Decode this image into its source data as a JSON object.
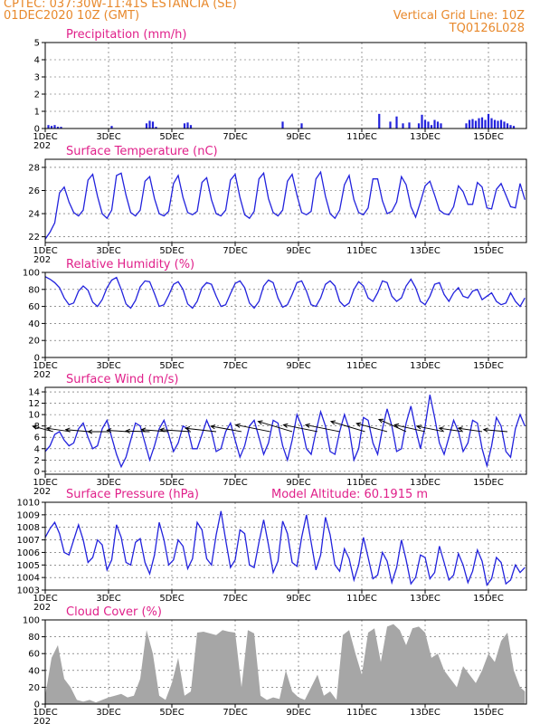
{
  "header": {
    "line1_left": "CPTEC:   037:30W-11:41S   ESTANCIA (SE)",
    "line2_left": "01DEC2020 10Z (GMT)",
    "line1_right": "Vertical Grid Line: 10Z",
    "line2_right": "TQ0126L028"
  },
  "colors": {
    "header": "#e8892c",
    "title": "#e0208a",
    "series": "#2222dd",
    "cloud": "#a6a6a6",
    "arrow": "#000000"
  },
  "x_axis": {
    "ticks": [
      "1DEC",
      "3DEC",
      "5DEC",
      "7DEC",
      "9DEC",
      "11DEC",
      "13DEC",
      "15DEC"
    ],
    "tick_days": [
      1,
      3,
      5,
      7,
      9,
      11,
      13,
      15
    ],
    "range_days": [
      1,
      16.2
    ],
    "year_fragment": "202"
  },
  "chart_data": [
    {
      "id": "precip",
      "type": "bar",
      "title": "Precipitation (mm/h)",
      "ylim": [
        0,
        5
      ],
      "yticks": [
        0,
        1,
        2,
        3,
        4,
        5
      ],
      "x_days": [
        1.1,
        1.2,
        1.3,
        1.4,
        1.5,
        3.1,
        4.2,
        4.3,
        4.4,
        4.5,
        5.4,
        5.5,
        5.6,
        8.5,
        9.1,
        11.55,
        11.9,
        12.1,
        12.3,
        12.5,
        12.8,
        12.9,
        13.0,
        13.1,
        13.2,
        13.3,
        13.4,
        13.5,
        14.3,
        14.4,
        14.5,
        14.6,
        14.7,
        14.8,
        14.9,
        15.0,
        15.1,
        15.2,
        15.3,
        15.4,
        15.5,
        15.6,
        15.7,
        15.8
      ],
      "values": [
        0.2,
        0.15,
        0.2,
        0.1,
        0.1,
        0.15,
        0.3,
        0.45,
        0.4,
        0.1,
        0.3,
        0.35,
        0.2,
        0.4,
        0.3,
        0.85,
        0.4,
        0.7,
        0.3,
        0.35,
        0.3,
        0.8,
        0.5,
        0.4,
        0.2,
        0.5,
        0.4,
        0.3,
        0.3,
        0.5,
        0.55,
        0.45,
        0.6,
        0.65,
        0.5,
        0.85,
        0.6,
        0.5,
        0.45,
        0.5,
        0.4,
        0.3,
        0.2,
        0.15
      ]
    },
    {
      "id": "temp",
      "type": "line",
      "title": "Surface Temperature (nC)",
      "ylim": [
        21.5,
        28.7
      ],
      "yticks": [
        22,
        24,
        26,
        28
      ],
      "x_days": [
        1.0,
        1.15,
        1.3,
        1.45,
        1.6,
        1.75,
        1.9,
        2.05,
        2.2,
        2.35,
        2.5,
        2.65,
        2.8,
        2.95,
        3.1,
        3.25,
        3.4,
        3.55,
        3.7,
        3.85,
        4.0,
        4.15,
        4.3,
        4.45,
        4.6,
        4.75,
        4.9,
        5.05,
        5.2,
        5.35,
        5.5,
        5.65,
        5.8,
        5.95,
        6.1,
        6.25,
        6.4,
        6.55,
        6.7,
        6.85,
        7.0,
        7.15,
        7.3,
        7.45,
        7.6,
        7.75,
        7.9,
        8.05,
        8.2,
        8.35,
        8.5,
        8.65,
        8.8,
        8.95,
        9.1,
        9.25,
        9.4,
        9.55,
        9.7,
        9.85,
        10.0,
        10.15,
        10.3,
        10.45,
        10.6,
        10.75,
        10.9,
        11.05,
        11.2,
        11.35,
        11.5,
        11.65,
        11.8,
        11.95,
        12.1,
        12.25,
        12.4,
        12.55,
        12.7,
        12.85,
        13.0,
        13.15,
        13.3,
        13.45,
        13.6,
        13.75,
        13.9,
        14.05,
        14.2,
        14.35,
        14.5,
        14.65,
        14.8,
        14.95,
        15.1,
        15.25,
        15.4,
        15.55,
        15.7,
        15.85,
        16.0,
        16.15
      ],
      "values": [
        21.8,
        22.4,
        23.2,
        25.8,
        26.3,
        25.0,
        24.1,
        23.8,
        24.3,
        26.9,
        27.4,
        25.5,
        24.0,
        23.6,
        24.3,
        27.3,
        27.5,
        25.6,
        24.1,
        23.8,
        24.3,
        26.8,
        27.2,
        25.3,
        24.0,
        23.8,
        24.2,
        26.6,
        27.3,
        25.4,
        24.1,
        23.9,
        24.2,
        26.7,
        27.1,
        25.2,
        24.0,
        23.8,
        24.3,
        26.9,
        27.4,
        25.4,
        23.9,
        23.6,
        24.2,
        27.0,
        27.5,
        25.3,
        24.1,
        23.8,
        24.3,
        26.8,
        27.4,
        25.6,
        24.1,
        23.9,
        24.2,
        27.0,
        27.6,
        25.5,
        24.0,
        23.6,
        24.3,
        26.5,
        27.3,
        25.2,
        24.1,
        23.9,
        24.5,
        27.0,
        27.0,
        25.1,
        24.0,
        24.2,
        25.0,
        27.2,
        26.5,
        24.6,
        23.7,
        25.0,
        26.4,
        26.8,
        25.6,
        24.3,
        24.0,
        23.9,
        24.6,
        26.4,
        25.9,
        24.8,
        24.8,
        26.7,
        26.3,
        24.5,
        24.4,
        26.1,
        26.6,
        25.6,
        24.6,
        24.5,
        26.6,
        25.2
      ]
    },
    {
      "id": "rh",
      "type": "line",
      "title": "Relative Humidity (%)",
      "ylim": [
        0,
        100
      ],
      "yticks": [
        0,
        20,
        40,
        60,
        80,
        100
      ],
      "x_days": [
        1.0,
        1.15,
        1.3,
        1.45,
        1.6,
        1.75,
        1.9,
        2.05,
        2.2,
        2.35,
        2.5,
        2.65,
        2.8,
        2.95,
        3.1,
        3.25,
        3.4,
        3.55,
        3.7,
        3.85,
        4.0,
        4.15,
        4.3,
        4.45,
        4.6,
        4.75,
        4.9,
        5.05,
        5.2,
        5.35,
        5.5,
        5.65,
        5.8,
        5.95,
        6.1,
        6.25,
        6.4,
        6.55,
        6.7,
        6.85,
        7.0,
        7.15,
        7.3,
        7.45,
        7.6,
        7.75,
        7.9,
        8.05,
        8.2,
        8.35,
        8.5,
        8.65,
        8.8,
        8.95,
        9.1,
        9.25,
        9.4,
        9.55,
        9.7,
        9.85,
        10.0,
        10.15,
        10.3,
        10.45,
        10.6,
        10.75,
        10.9,
        11.05,
        11.2,
        11.35,
        11.5,
        11.65,
        11.8,
        11.95,
        12.1,
        12.25,
        12.4,
        12.55,
        12.7,
        12.85,
        13.0,
        13.15,
        13.3,
        13.45,
        13.6,
        13.75,
        13.9,
        14.05,
        14.2,
        14.35,
        14.5,
        14.65,
        14.8,
        14.95,
        15.1,
        15.25,
        15.4,
        15.55,
        15.7,
        15.85,
        16.0,
        16.15
      ],
      "values": [
        95,
        92,
        88,
        82,
        70,
        62,
        64,
        78,
        84,
        79,
        65,
        60,
        68,
        82,
        91,
        94,
        80,
        63,
        58,
        67,
        83,
        90,
        89,
        75,
        60,
        62,
        73,
        86,
        89,
        80,
        63,
        58,
        66,
        82,
        88,
        86,
        72,
        60,
        62,
        75,
        87,
        90,
        82,
        64,
        58,
        66,
        84,
        91,
        88,
        70,
        59,
        62,
        74,
        88,
        90,
        78,
        62,
        60,
        70,
        86,
        90,
        84,
        66,
        60,
        64,
        80,
        89,
        84,
        70,
        66,
        76,
        90,
        88,
        72,
        66,
        70,
        84,
        92,
        82,
        66,
        62,
        72,
        86,
        88,
        74,
        66,
        76,
        82,
        72,
        70,
        78,
        80,
        68,
        72,
        76,
        66,
        62,
        64,
        76,
        66,
        60,
        70
      ]
    },
    {
      "id": "wind",
      "type": "line",
      "title": "Surface Wind (m/s)",
      "ylim": [
        -0.5,
        14.8
      ],
      "yticks": [
        0,
        2,
        4,
        6,
        8,
        10,
        12,
        14
      ],
      "x_days": [
        1.0,
        1.15,
        1.3,
        1.45,
        1.6,
        1.75,
        1.9,
        2.05,
        2.2,
        2.35,
        2.5,
        2.65,
        2.8,
        2.95,
        3.1,
        3.25,
        3.4,
        3.55,
        3.7,
        3.85,
        4.0,
        4.15,
        4.3,
        4.45,
        4.6,
        4.75,
        4.9,
        5.05,
        5.2,
        5.35,
        5.5,
        5.65,
        5.8,
        5.95,
        6.1,
        6.25,
        6.4,
        6.55,
        6.7,
        6.85,
        7.0,
        7.15,
        7.3,
        7.45,
        7.6,
        7.75,
        7.9,
        8.05,
        8.2,
        8.35,
        8.5,
        8.65,
        8.8,
        8.95,
        9.1,
        9.25,
        9.4,
        9.55,
        9.7,
        9.85,
        10.0,
        10.15,
        10.3,
        10.45,
        10.6,
        10.75,
        10.9,
        11.05,
        11.2,
        11.35,
        11.5,
        11.65,
        11.8,
        11.95,
        12.1,
        12.25,
        12.4,
        12.55,
        12.7,
        12.85,
        13.0,
        13.15,
        13.3,
        13.45,
        13.6,
        13.75,
        13.9,
        14.05,
        14.2,
        14.35,
        14.5,
        14.65,
        14.8,
        14.95,
        15.1,
        15.25,
        15.4,
        15.55,
        15.7,
        15.85,
        16.0,
        16.15
      ],
      "values": [
        3.5,
        4.5,
        6.5,
        7.0,
        5.5,
        4.5,
        5.0,
        7.5,
        8.5,
        6.0,
        4.0,
        4.5,
        7.5,
        9.0,
        6.0,
        3.0,
        0.8,
        2.5,
        5.5,
        8.5,
        8.0,
        5.0,
        2.0,
        4.5,
        7.5,
        9.0,
        6.5,
        3.5,
        5.0,
        8.0,
        7.5,
        4.0,
        4.0,
        6.5,
        9.0,
        7.0,
        3.5,
        4.0,
        7.0,
        8.5,
        5.5,
        2.5,
        4.5,
        8.0,
        9.0,
        6.0,
        3.0,
        5.0,
        9.0,
        8.5,
        4.5,
        2.0,
        5.5,
        10.0,
        8.0,
        4.0,
        3.0,
        7.0,
        10.5,
        8.0,
        3.5,
        3.0,
        7.0,
        10.0,
        7.5,
        2.0,
        4.0,
        9.5,
        9.0,
        5.0,
        3.0,
        7.5,
        11.0,
        8.0,
        3.5,
        4.0,
        8.5,
        11.5,
        7.5,
        4.0,
        8.0,
        13.5,
        9.5,
        5.0,
        3.0,
        6.0,
        9.0,
        7.0,
        3.5,
        5.0,
        9.0,
        8.5,
        4.0,
        1.0,
        4.5,
        9.5,
        8.0,
        3.5,
        2.5,
        7.5,
        10.0,
        8.0
      ],
      "vector_x_days": [
        1.25,
        1.8,
        2.4,
        3.0,
        3.6,
        4.3,
        4.9,
        5.6,
        6.4,
        7.2,
        8.1,
        8.8,
        9.6,
        10.3,
        11.1,
        11.8,
        12.4,
        13.0,
        13.6,
        14.2,
        14.8,
        15.6
      ],
      "vector_u": [
        -3.0,
        -3.5,
        -3.5,
        -3.0,
        -3.0,
        -3.5,
        -4.0,
        -4.5,
        -4.5,
        -4.5,
        -5.0,
        -5.0,
        -5.0,
        -5.0,
        -5.0,
        -4.5,
        -4.0,
        -4.5,
        -4.0,
        -3.5,
        -3.5,
        -3.5
      ],
      "vector_v": [
        0.8,
        0.5,
        0.3,
        0.0,
        0.2,
        0.1,
        0.3,
        0.3,
        0.5,
        0.8,
        1.0,
        1.5,
        1.0,
        1.0,
        1.5,
        1.2,
        1.8,
        1.0,
        0.8,
        0.5,
        0.5,
        0.3
      ]
    },
    {
      "id": "pres",
      "type": "line",
      "title": "Surface Pressure (hPa)",
      "annotation": "Model Altitude: 60.1915 m",
      "ylim": [
        1003,
        1010
      ],
      "yticks": [
        1003,
        1004,
        1005,
        1006,
        1007,
        1008,
        1009,
        1010
      ],
      "x_days": [
        1.0,
        1.15,
        1.3,
        1.45,
        1.6,
        1.75,
        1.9,
        2.05,
        2.2,
        2.35,
        2.5,
        2.65,
        2.8,
        2.95,
        3.1,
        3.25,
        3.4,
        3.55,
        3.7,
        3.85,
        4.0,
        4.15,
        4.3,
        4.45,
        4.6,
        4.75,
        4.9,
        5.05,
        5.2,
        5.35,
        5.5,
        5.65,
        5.8,
        5.95,
        6.1,
        6.25,
        6.4,
        6.55,
        6.7,
        6.85,
        7.0,
        7.15,
        7.3,
        7.45,
        7.6,
        7.75,
        7.9,
        8.05,
        8.2,
        8.35,
        8.5,
        8.65,
        8.8,
        8.95,
        9.1,
        9.25,
        9.4,
        9.55,
        9.7,
        9.85,
        10.0,
        10.15,
        10.3,
        10.45,
        10.6,
        10.75,
        10.9,
        11.05,
        11.2,
        11.35,
        11.5,
        11.65,
        11.8,
        11.95,
        12.1,
        12.25,
        12.4,
        12.55,
        12.7,
        12.85,
        13.0,
        13.15,
        13.3,
        13.45,
        13.6,
        13.75,
        13.9,
        14.05,
        14.2,
        14.35,
        14.5,
        14.65,
        14.8,
        14.95,
        15.1,
        15.25,
        15.4,
        15.55,
        15.7,
        15.85,
        16.0,
        16.15
      ],
      "values": [
        1007.2,
        1007.9,
        1008.4,
        1007.5,
        1006.0,
        1005.8,
        1007.0,
        1008.2,
        1007.0,
        1005.2,
        1005.6,
        1007.0,
        1006.6,
        1004.6,
        1005.4,
        1008.2,
        1007.2,
        1005.2,
        1005.0,
        1006.8,
        1007.1,
        1005.2,
        1004.3,
        1005.8,
        1008.4,
        1007.0,
        1005.0,
        1005.4,
        1007.0,
        1006.5,
        1004.7,
        1005.5,
        1008.4,
        1007.8,
        1005.5,
        1005.0,
        1007.4,
        1009.3,
        1007.0,
        1004.8,
        1005.4,
        1007.8,
        1007.5,
        1005.0,
        1004.8,
        1006.8,
        1008.6,
        1006.6,
        1004.4,
        1005.3,
        1008.5,
        1007.5,
        1005.2,
        1004.9,
        1007.2,
        1009.0,
        1006.8,
        1004.6,
        1005.8,
        1008.8,
        1007.4,
        1005.0,
        1004.5,
        1006.3,
        1005.5,
        1003.8,
        1005.0,
        1007.2,
        1005.6,
        1003.9,
        1004.2,
        1006.0,
        1005.3,
        1003.6,
        1004.8,
        1007.0,
        1005.4,
        1003.5,
        1004.0,
        1005.8,
        1005.6,
        1003.9,
        1004.4,
        1006.5,
        1005.2,
        1003.8,
        1004.2,
        1005.9,
        1005.0,
        1003.6,
        1004.5,
        1006.2,
        1005.3,
        1003.4,
        1003.9,
        1005.6,
        1005.2,
        1003.5,
        1003.8,
        1005.0,
        1004.4,
        1004.8
      ]
    },
    {
      "id": "cloud",
      "type": "area",
      "title": "Cloud Cover (%)",
      "ylim": [
        0,
        100
      ],
      "yticks": [
        0,
        20,
        40,
        60,
        80,
        100
      ],
      "x_days": [
        1.0,
        1.2,
        1.4,
        1.6,
        1.8,
        2.0,
        2.2,
        2.4,
        2.6,
        2.8,
        3.0,
        3.2,
        3.4,
        3.6,
        3.8,
        4.0,
        4.2,
        4.4,
        4.6,
        4.8,
        5.0,
        5.2,
        5.4,
        5.6,
        5.8,
        6.0,
        6.2,
        6.4,
        6.6,
        6.8,
        7.0,
        7.2,
        7.4,
        7.6,
        7.8,
        8.0,
        8.2,
        8.4,
        8.6,
        8.8,
        9.0,
        9.2,
        9.4,
        9.6,
        9.8,
        10.0,
        10.2,
        10.4,
        10.6,
        10.8,
        11.0,
        11.2,
        11.4,
        11.6,
        11.8,
        12.0,
        12.2,
        12.4,
        12.6,
        12.8,
        13.0,
        13.2,
        13.4,
        13.6,
        13.8,
        14.0,
        14.2,
        14.4,
        14.6,
        14.8,
        15.0,
        15.2,
        15.4,
        15.6,
        15.8,
        16.0,
        16.15
      ],
      "values": [
        10,
        55,
        70,
        30,
        20,
        5,
        3,
        5,
        2,
        5,
        8,
        10,
        12,
        8,
        10,
        30,
        88,
        60,
        10,
        5,
        25,
        55,
        10,
        15,
        85,
        86,
        84,
        82,
        88,
        86,
        85,
        20,
        88,
        84,
        10,
        5,
        8,
        6,
        40,
        15,
        8,
        5,
        20,
        35,
        10,
        15,
        5,
        82,
        88,
        60,
        35,
        85,
        90,
        50,
        92,
        95,
        88,
        70,
        90,
        92,
        85,
        55,
        60,
        40,
        30,
        20,
        45,
        35,
        25,
        40,
        60,
        50,
        75,
        85,
        40,
        20,
        15
      ]
    }
  ]
}
